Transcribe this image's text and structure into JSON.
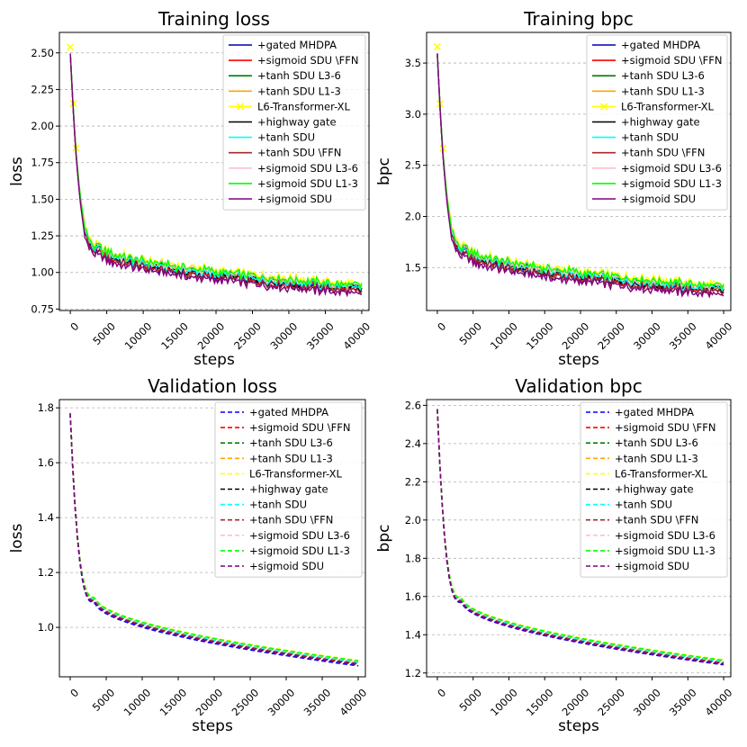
{
  "chart_data": [
    {
      "type": "line",
      "title": "Training loss",
      "xlabel": "steps",
      "ylabel": "loss",
      "xlim": [
        -1500,
        41000
      ],
      "ylim": [
        0.74,
        2.64
      ],
      "xticks": [
        0,
        5000,
        10000,
        15000,
        20000,
        25000,
        30000,
        35000,
        40000
      ],
      "yticks": [
        0.75,
        1.0,
        1.25,
        1.5,
        1.75,
        2.0,
        2.25,
        2.5
      ],
      "ytick_labels": [
        "0.75",
        "1.00",
        "1.25",
        "1.50",
        "1.75",
        "2.00",
        "2.25",
        "2.50"
      ],
      "grid": "horizontal dashed",
      "legend": "top-right",
      "line_style": "solid",
      "curve": {
        "start": 2.5,
        "plateau": 1.15,
        "plateau_step": 4000,
        "end": 0.88
      },
      "series": [
        {
          "name": "+gated MHDPA",
          "color": "#0000aa",
          "offset": -0.01
        },
        {
          "name": "+sigmoid SDU \\FFN",
          "color": "#ff0000",
          "offset": 0.0
        },
        {
          "name": "+tanh SDU L3-6",
          "color": "#008000",
          "offset": 0.02
        },
        {
          "name": "+tanh SDU L1-3",
          "color": "#ffa500",
          "offset": 0.015
        },
        {
          "name": "L6-Transformer-XL",
          "color": "#ffff00",
          "offset": 0.04,
          "marker": "x"
        },
        {
          "name": "+highway gate",
          "color": "#000000",
          "offset": 0.005
        },
        {
          "name": "+tanh SDU",
          "color": "#00ffff",
          "offset": 0.01
        },
        {
          "name": "+tanh SDU \\FFN",
          "color": "#a52a2a",
          "offset": -0.015
        },
        {
          "name": "+sigmoid SDU L3-6",
          "color": "#ffc0cb",
          "offset": 0.025
        },
        {
          "name": "+sigmoid SDU L1-3",
          "color": "#00ff00",
          "offset": 0.03
        },
        {
          "name": "+sigmoid SDU",
          "color": "#800080",
          "offset": -0.03
        }
      ]
    },
    {
      "type": "line",
      "title": "Training bpc",
      "xlabel": "steps",
      "ylabel": "bpc",
      "xlim": [
        -1500,
        41000
      ],
      "ylim": [
        1.08,
        3.8
      ],
      "xticks": [
        0,
        5000,
        10000,
        15000,
        20000,
        25000,
        30000,
        35000,
        40000
      ],
      "yticks": [
        1.5,
        2.0,
        2.5,
        3.0,
        3.5
      ],
      "ytick_labels": [
        "1.5",
        "2.0",
        "2.5",
        "3.0",
        "3.5"
      ],
      "grid": "horizontal dashed",
      "legend": "top-right",
      "line_style": "solid",
      "curve": {
        "start": 3.6,
        "plateau": 1.65,
        "plateau_step": 4000,
        "end": 1.27
      },
      "series": [
        {
          "name": "+gated MHDPA",
          "color": "#0000aa",
          "offset": -0.015
        },
        {
          "name": "+sigmoid SDU \\FFN",
          "color": "#ff0000",
          "offset": 0.0
        },
        {
          "name": "+tanh SDU L3-6",
          "color": "#008000",
          "offset": 0.03
        },
        {
          "name": "+tanh SDU L1-3",
          "color": "#ffa500",
          "offset": 0.02
        },
        {
          "name": "L6-Transformer-XL",
          "color": "#ffff00",
          "offset": 0.06,
          "marker": "x"
        },
        {
          "name": "+highway gate",
          "color": "#000000",
          "offset": 0.008
        },
        {
          "name": "+tanh SDU",
          "color": "#00ffff",
          "offset": 0.015
        },
        {
          "name": "+tanh SDU \\FFN",
          "color": "#a52a2a",
          "offset": -0.02
        },
        {
          "name": "+sigmoid SDU L3-6",
          "color": "#ffc0cb",
          "offset": 0.035
        },
        {
          "name": "+sigmoid SDU L1-3",
          "color": "#00ff00",
          "offset": 0.045
        },
        {
          "name": "+sigmoid SDU",
          "color": "#800080",
          "offset": -0.045
        }
      ]
    },
    {
      "type": "line",
      "title": "Validation loss",
      "xlabel": "steps",
      "ylabel": "loss",
      "xlim": [
        -1500,
        41000
      ],
      "ylim": [
        0.82,
        1.83
      ],
      "xticks": [
        0,
        5000,
        10000,
        15000,
        20000,
        25000,
        30000,
        35000,
        40000
      ],
      "yticks": [
        1.0,
        1.2,
        1.4,
        1.6,
        1.8
      ],
      "ytick_labels": [
        "1.0",
        "1.2",
        "1.4",
        "1.6",
        "1.8"
      ],
      "grid": "horizontal dashed",
      "legend": "top-right",
      "line_style": "dashed",
      "curve": {
        "start": 1.78,
        "plateau": 1.1,
        "plateau_step": 3500,
        "end": 0.87
      },
      "series": [
        {
          "name": "+gated MHDPA",
          "color": "#0000ff",
          "offset": -0.01
        },
        {
          "name": "+sigmoid SDU \\FFN",
          "color": "#ff0000",
          "offset": 0.0
        },
        {
          "name": "+tanh SDU L3-6",
          "color": "#008000",
          "offset": 0.004
        },
        {
          "name": "+tanh SDU L1-3",
          "color": "#ffa500",
          "offset": 0.006
        },
        {
          "name": "L6-Transformer-XL",
          "color": "#ffff00",
          "offset": 0.01
        },
        {
          "name": "+highway gate",
          "color": "#000000",
          "offset": -0.004
        },
        {
          "name": "+tanh SDU",
          "color": "#00ffff",
          "offset": 0.002
        },
        {
          "name": "+tanh SDU \\FFN",
          "color": "#a52a2a",
          "offset": -0.002
        },
        {
          "name": "+sigmoid SDU L3-6",
          "color": "#ffc0cb",
          "offset": 0.007
        },
        {
          "name": "+sigmoid SDU L1-3",
          "color": "#00ff00",
          "offset": 0.008
        },
        {
          "name": "+sigmoid SDU",
          "color": "#800080",
          "offset": -0.006
        }
      ]
    },
    {
      "type": "line",
      "title": "Validation bpc",
      "xlabel": "steps",
      "ylabel": "bpc",
      "xlim": [
        -1500,
        41000
      ],
      "ylim": [
        1.18,
        2.63
      ],
      "xticks": [
        0,
        5000,
        10000,
        15000,
        20000,
        25000,
        30000,
        35000,
        40000
      ],
      "yticks": [
        1.2,
        1.4,
        1.6,
        1.8,
        2.0,
        2.2,
        2.4,
        2.6
      ],
      "ytick_labels": [
        "1.2",
        "1.4",
        "1.6",
        "1.8",
        "2.0",
        "2.2",
        "2.4",
        "2.6"
      ],
      "grid": "horizontal dashed",
      "legend": "top-right",
      "line_style": "dashed",
      "curve": {
        "start": 2.58,
        "plateau": 1.58,
        "plateau_step": 3500,
        "end": 1.255
      },
      "series": [
        {
          "name": "+gated MHDPA",
          "color": "#0000ff",
          "offset": -0.012
        },
        {
          "name": "+sigmoid SDU \\FFN",
          "color": "#ff0000",
          "offset": 0.0
        },
        {
          "name": "+tanh SDU L3-6",
          "color": "#008000",
          "offset": 0.005
        },
        {
          "name": "+tanh SDU L1-3",
          "color": "#ffa500",
          "offset": 0.008
        },
        {
          "name": "L6-Transformer-XL",
          "color": "#ffff00",
          "offset": 0.014
        },
        {
          "name": "+highway gate",
          "color": "#000000",
          "offset": -0.005
        },
        {
          "name": "+tanh SDU",
          "color": "#00ffff",
          "offset": 0.003
        },
        {
          "name": "+tanh SDU \\FFN",
          "color": "#a52a2a",
          "offset": -0.003
        },
        {
          "name": "+sigmoid SDU L3-6",
          "color": "#ffc0cb",
          "offset": 0.01
        },
        {
          "name": "+sigmoid SDU L1-3",
          "color": "#00ff00",
          "offset": 0.011
        },
        {
          "name": "+sigmoid SDU",
          "color": "#800080",
          "offset": -0.008
        }
      ]
    }
  ]
}
